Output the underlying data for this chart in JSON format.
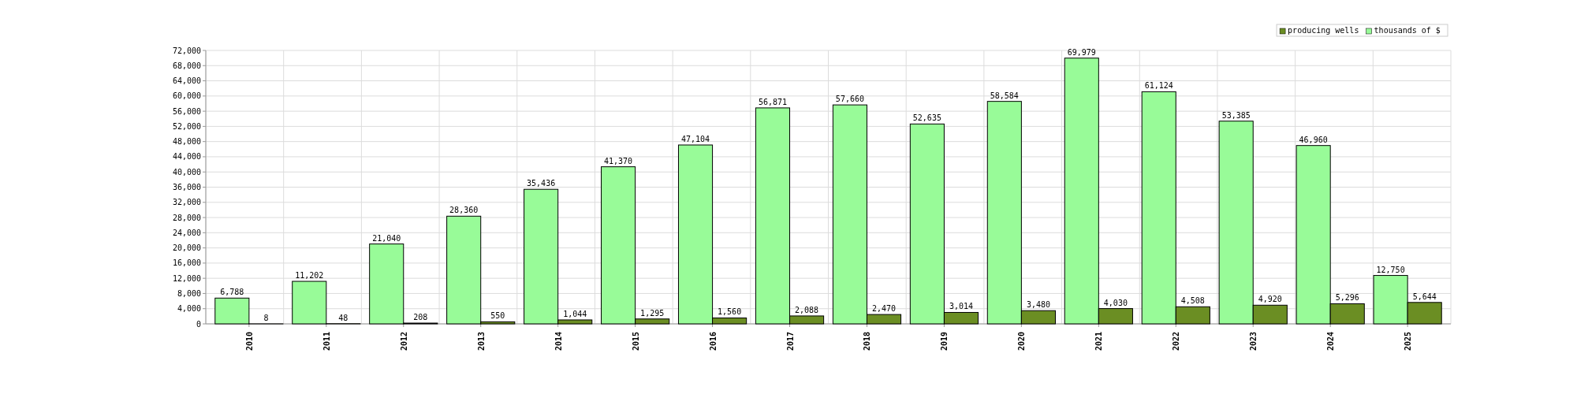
{
  "chart_data": {
    "type": "bar",
    "categories": [
      "2010",
      "2011",
      "2012",
      "2013",
      "2014",
      "2015",
      "2016",
      "2017",
      "2018",
      "2019",
      "2020",
      "2021",
      "2022",
      "2023",
      "2024",
      "2025"
    ],
    "series": [
      {
        "name": "thousands of $",
        "color": "#98fb98",
        "values": [
          6788,
          11202,
          21040,
          28360,
          35436,
          41370,
          47104,
          56871,
          57660,
          52635,
          58584,
          69979,
          61124,
          53385,
          46960,
          12750
        ],
        "value_labels": [
          "6,788",
          "11,202",
          "21,040",
          "28,360",
          "35,436",
          "41,370",
          "47,104",
          "56,871",
          "57,660",
          "52,635",
          "58,584",
          "69,979",
          "61,124",
          "53,385",
          "46,960",
          "12,750"
        ]
      },
      {
        "name": "producing wells",
        "color": "#6b8e23",
        "values": [
          8,
          48,
          208,
          550,
          1044,
          1295,
          1560,
          2088,
          2470,
          3014,
          3480,
          4030,
          4508,
          4920,
          5296,
          5644
        ],
        "value_labels": [
          "8",
          "48",
          "208",
          "550",
          "1,044",
          "1,295",
          "1,560",
          "2,088",
          "2,470",
          "3,014",
          "3,480",
          "4,030",
          "4,508",
          "4,920",
          "5,296",
          "5,644"
        ]
      }
    ],
    "ylim": [
      0,
      72000
    ],
    "yticks": [
      {
        "value": 0,
        "label": "0"
      },
      {
        "value": 4000,
        "label": "4,000"
      },
      {
        "value": 8000,
        "label": "8,000"
      },
      {
        "value": 12000,
        "label": "12,000"
      },
      {
        "value": 16000,
        "label": "16,000"
      },
      {
        "value": 20000,
        "label": "20,000"
      },
      {
        "value": 24000,
        "label": "24,000"
      },
      {
        "value": 28000,
        "label": "28,000"
      },
      {
        "value": 32000,
        "label": "32,000"
      },
      {
        "value": 36000,
        "label": "36,000"
      },
      {
        "value": 40000,
        "label": "40,000"
      },
      {
        "value": 44000,
        "label": "44,000"
      },
      {
        "value": 48000,
        "label": "48,000"
      },
      {
        "value": 52000,
        "label": "52,000"
      },
      {
        "value": 56000,
        "label": "56,000"
      },
      {
        "value": 60000,
        "label": "60,000"
      },
      {
        "value": 64000,
        "label": "64,000"
      },
      {
        "value": 68000,
        "label": "68,000"
      },
      {
        "value": 72000,
        "label": "72,000"
      }
    ],
    "grid": true,
    "legend": "top right"
  }
}
